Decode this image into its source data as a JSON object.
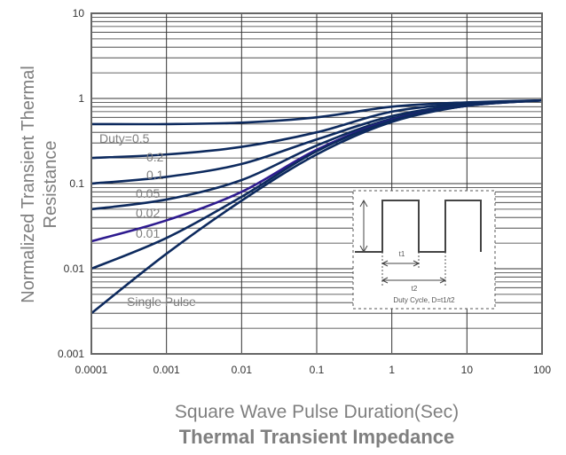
{
  "chart_data": {
    "type": "line",
    "title": "Thermal Transient Impedance",
    "xlabel": "Square Wave Pulse Duration(Sec)",
    "ylabel_lines": [
      "Normalized Transient Thermal",
      "Resistance"
    ],
    "xscale": "log",
    "yscale": "log",
    "xlim": [
      0.0001,
      100
    ],
    "ylim": [
      0.001,
      10
    ],
    "x_ticks": [
      "0.0001",
      "0.001",
      "0.01",
      "0.1",
      "1",
      "10",
      "100"
    ],
    "y_ticks": [
      "0.001",
      "0.01",
      "0.1",
      "1",
      "10"
    ],
    "grid": true,
    "series": [
      {
        "name": "Duty=0.5",
        "x": [
          0.0001,
          0.001,
          0.01,
          0.1,
          1,
          10,
          100
        ],
        "y": [
          0.5,
          0.5,
          0.52,
          0.6,
          0.8,
          0.9,
          0.95
        ]
      },
      {
        "name": "0.2",
        "x": [
          0.0001,
          0.001,
          0.01,
          0.1,
          1,
          10,
          100
        ],
        "y": [
          0.2,
          0.22,
          0.27,
          0.4,
          0.7,
          0.87,
          0.95
        ]
      },
      {
        "name": "0.1",
        "x": [
          0.0001,
          0.001,
          0.01,
          0.1,
          1,
          10,
          100
        ],
        "y": [
          0.1,
          0.12,
          0.17,
          0.33,
          0.62,
          0.85,
          0.95
        ]
      },
      {
        "name": "0.05",
        "x": [
          0.0001,
          0.001,
          0.01,
          0.1,
          1,
          10,
          100
        ],
        "y": [
          0.05,
          0.065,
          0.11,
          0.28,
          0.58,
          0.83,
          0.95
        ]
      },
      {
        "name": "0.02",
        "x": [
          0.0001,
          0.001,
          0.01,
          0.1,
          1,
          10,
          100
        ],
        "y": [
          0.021,
          0.037,
          0.08,
          0.25,
          0.56,
          0.82,
          0.95
        ]
      },
      {
        "name": "0.01",
        "x": [
          0.0001,
          0.001,
          0.01,
          0.1,
          1,
          10,
          100
        ],
        "y": [
          0.01,
          0.023,
          0.07,
          0.24,
          0.55,
          0.82,
          0.95
        ]
      },
      {
        "name": "Single Pulse",
        "x": [
          0.0001,
          0.001,
          0.01,
          0.1,
          1,
          10,
          100
        ],
        "y": [
          0.003,
          0.015,
          0.063,
          0.22,
          0.53,
          0.82,
          0.95
        ]
      }
    ],
    "highlight_series": "0.02",
    "inset": {
      "t1_label": "t1",
      "t2_label": "t2",
      "caption": "Duty Cycle, D=t1/t2"
    }
  },
  "colors": {
    "line": "#0d2a5e",
    "highlight": "#2e1b8f",
    "grid": "#333333",
    "text": "#7f7f7f"
  }
}
